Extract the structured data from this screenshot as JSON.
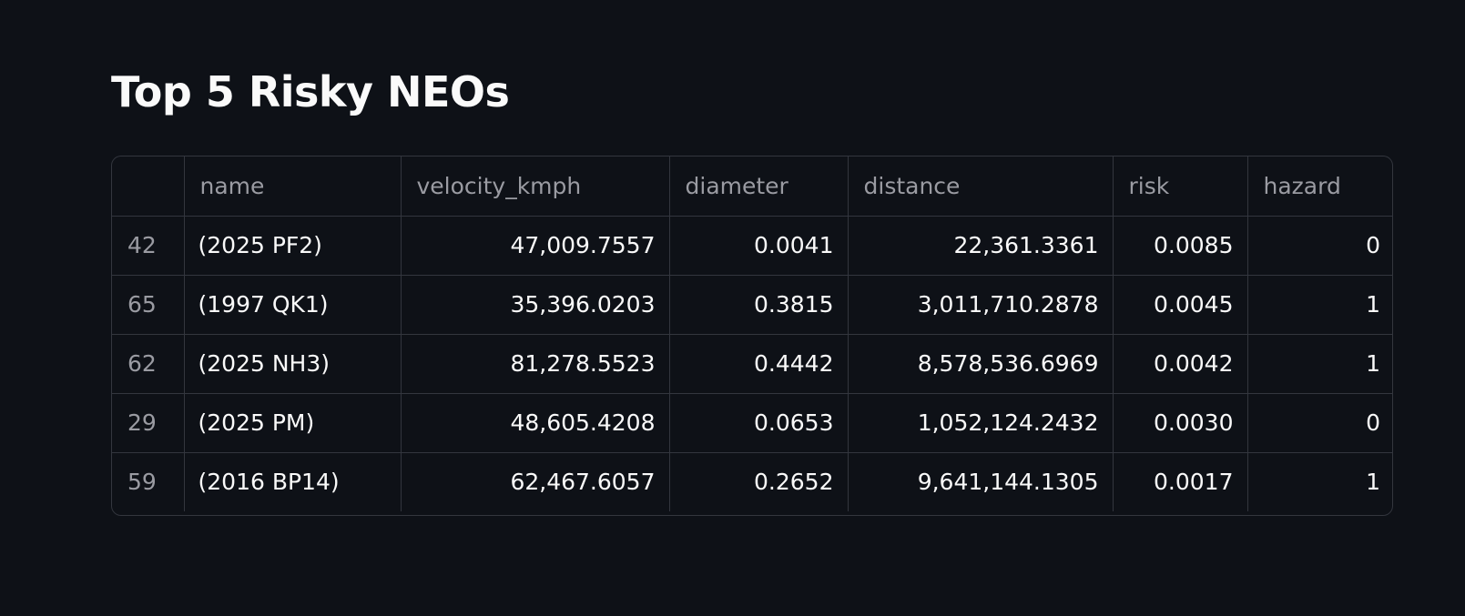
{
  "title": "Top 5 Risky NEOs",
  "table": {
    "columns": [
      "",
      "name",
      "velocity_kmph",
      "diameter",
      "distance",
      "risk",
      "hazard"
    ],
    "rows": [
      {
        "index": "42",
        "name": "(2025 PF2)",
        "velocity_kmph": "47,009.7557",
        "diameter": "0.0041",
        "distance": "22,361.3361",
        "risk": "0.0085",
        "hazard": "0"
      },
      {
        "index": "65",
        "name": "(1997 QK1)",
        "velocity_kmph": "35,396.0203",
        "diameter": "0.3815",
        "distance": "3,011,710.2878",
        "risk": "0.0045",
        "hazard": "1"
      },
      {
        "index": "62",
        "name": "(2025 NH3)",
        "velocity_kmph": "81,278.5523",
        "diameter": "0.4442",
        "distance": "8,578,536.6969",
        "risk": "0.0042",
        "hazard": "1"
      },
      {
        "index": "29",
        "name": "(2025 PM)",
        "velocity_kmph": "48,605.4208",
        "diameter": "0.0653",
        "distance": "1,052,124.2432",
        "risk": "0.0030",
        "hazard": "0"
      },
      {
        "index": "59",
        "name": "(2016 BP14)",
        "velocity_kmph": "62,467.6057",
        "diameter": "0.2652",
        "distance": "9,641,144.1305",
        "risk": "0.0017",
        "hazard": "1"
      }
    ]
  },
  "colors": {
    "background": "#0e1117",
    "text": "#fafafa",
    "muted_text": "#9a9ba2",
    "grid_line": "#33363e"
  }
}
